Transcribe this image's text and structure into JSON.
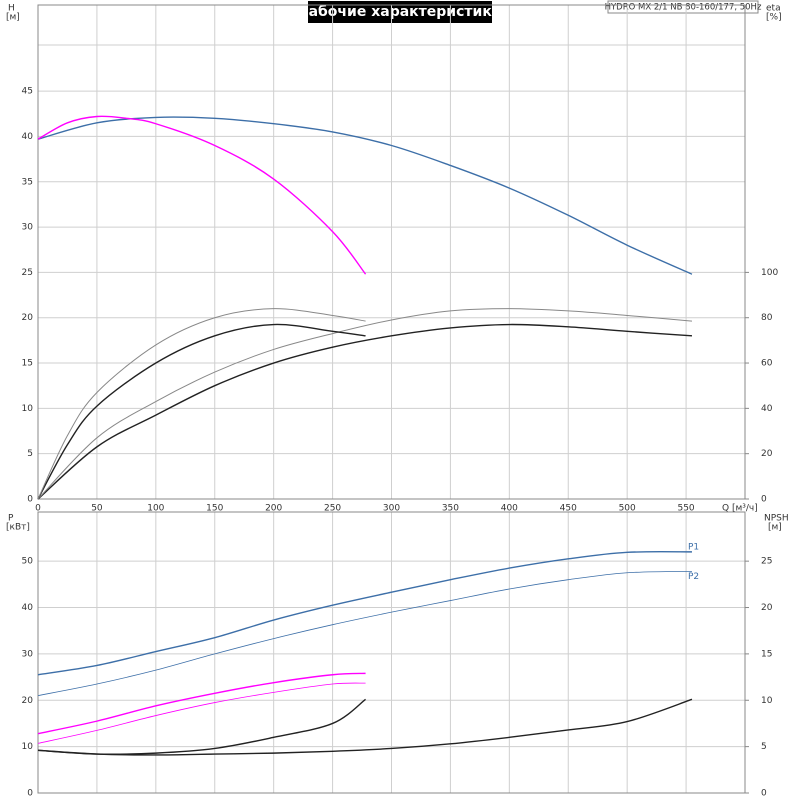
{
  "chart_data": [
    {
      "type": "line",
      "title": "Рабочие характеристики",
      "annotation": "HYDRO MX 2/1 NB 80-160/177, 50Hz",
      "ylabel": "H",
      "yunit": "[м]",
      "y2label": "eta",
      "y2unit": "[%]",
      "xlabel": "Q [м³/ч]",
      "xlim": [
        0,
        600
      ],
      "xticks": [
        0,
        50,
        100,
        150,
        200,
        250,
        300,
        350,
        400,
        450,
        500,
        550
      ],
      "ylim": [
        0,
        54.5
      ],
      "yticks": [
        0,
        5,
        10,
        15,
        20,
        25,
        30,
        35,
        40,
        45
      ],
      "y2lim": [
        0,
        218
      ],
      "y2ticks": [
        0,
        20,
        40,
        60,
        80,
        100
      ],
      "grid": true,
      "series": [
        {
          "color": "#3d6fa8",
          "width": 1.4,
          "x": [
            0,
            50,
            100,
            150,
            200,
            250,
            300,
            350,
            400,
            450,
            500,
            555
          ],
          "values": [
            39.7,
            41.5,
            42.1,
            42.0,
            41.4,
            40.5,
            39.0,
            36.8,
            34.3,
            31.3,
            28.0,
            24.8
          ]
        },
        {
          "color": "#ff00ff",
          "width": 1.4,
          "x": [
            0,
            25,
            50,
            75,
            100,
            150,
            200,
            250,
            278
          ],
          "values": [
            39.7,
            41.5,
            42.2,
            42.0,
            41.4,
            39.0,
            35.3,
            29.5,
            24.8
          ]
        },
        {
          "color": "#222222",
          "width": 1.4,
          "axis": "y2",
          "x": [
            0,
            50,
            100,
            150,
            200,
            250,
            300,
            350,
            400,
            450,
            500,
            555
          ],
          "values": [
            0,
            23,
            37,
            50,
            60,
            67,
            72,
            75.5,
            77,
            76,
            74,
            72
          ]
        },
        {
          "color": "#888888",
          "width": 1,
          "axis": "y2",
          "x": [
            0,
            50,
            100,
            150,
            200,
            250,
            300,
            350,
            400,
            450,
            500,
            555
          ],
          "values": [
            0,
            27,
            43,
            56,
            66,
            73,
            79,
            83,
            84,
            83,
            81,
            78.5
          ]
        },
        {
          "color": "#222222",
          "width": 1.4,
          "axis": "y2",
          "x": [
            0,
            25,
            50,
            100,
            150,
            200,
            250,
            278
          ],
          "values": [
            0,
            24,
            41,
            60,
            72,
            77,
            74,
            72
          ]
        },
        {
          "color": "#888888",
          "width": 1,
          "axis": "y2",
          "x": [
            0,
            25,
            50,
            100,
            150,
            200,
            250,
            278
          ],
          "values": [
            0,
            28,
            47,
            68,
            80,
            84,
            81,
            78.5
          ]
        }
      ]
    },
    {
      "type": "line",
      "ylabel": "P",
      "yunit": "[кВт]",
      "y2label": "NPSH",
      "y2unit": "[м]",
      "xlim": [
        0,
        600
      ],
      "xticks": [
        0,
        50,
        100,
        150,
        200,
        250,
        300,
        350,
        400,
        450,
        500,
        550
      ],
      "ylim": [
        0,
        60.6
      ],
      "yticks": [
        0,
        10,
        20,
        30,
        40,
        50
      ],
      "y2lim": [
        0,
        30.3
      ],
      "y2ticks": [
        0,
        5,
        10,
        15,
        20,
        25
      ],
      "grid": true,
      "series": [
        {
          "name": "P1",
          "color": "#3d6fa8",
          "width": 1.4,
          "x": [
            0,
            50,
            100,
            150,
            200,
            250,
            300,
            350,
            400,
            450,
            500,
            555
          ],
          "values": [
            25.5,
            27.5,
            30.5,
            33.5,
            37.3,
            40.5,
            43.3,
            46,
            48.5,
            50.5,
            51.9,
            52.0
          ]
        },
        {
          "name": "P2",
          "color": "#3d6fa8",
          "width": 0.8,
          "x": [
            0,
            50,
            100,
            150,
            200,
            250,
            300,
            350,
            400,
            450,
            500,
            555
          ],
          "values": [
            21,
            23.5,
            26.5,
            30,
            33.3,
            36.3,
            39,
            41.5,
            44,
            46,
            47.5,
            47.8
          ]
        },
        {
          "color": "#ff00ff",
          "width": 1.4,
          "x": [
            0,
            50,
            100,
            150,
            200,
            250,
            278
          ],
          "values": [
            12.8,
            15.5,
            18.8,
            21.5,
            23.8,
            25.5,
            25.8
          ]
        },
        {
          "color": "#ff00ff",
          "width": 0.8,
          "x": [
            0,
            50,
            100,
            150,
            200,
            250,
            278
          ],
          "values": [
            10.7,
            13.5,
            16.7,
            19.5,
            21.7,
            23.5,
            23.7
          ]
        },
        {
          "color": "#222222",
          "width": 1.4,
          "axis": "y2",
          "x": [
            0,
            50,
            100,
            150,
            200,
            250,
            300,
            350,
            400,
            450,
            500,
            555
          ],
          "values": [
            4.6,
            4.2,
            4.1,
            4.2,
            4.3,
            4.5,
            4.8,
            5.3,
            6,
            6.8,
            7.7,
            10.1
          ]
        },
        {
          "color": "#222222",
          "width": 1.4,
          "axis": "y2",
          "x": [
            0,
            50,
            100,
            150,
            200,
            250,
            278
          ],
          "values": [
            4.6,
            4.2,
            4.3,
            4.8,
            6,
            7.5,
            10.1
          ]
        }
      ]
    }
  ]
}
